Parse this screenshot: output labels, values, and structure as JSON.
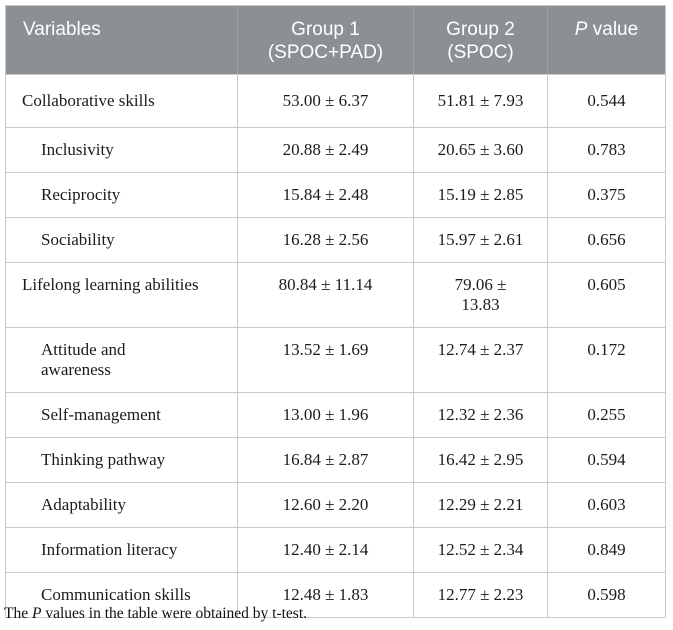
{
  "colors": {
    "header_bg": "#8a9094",
    "header_text": "#ffffff",
    "header_divider": "#9ea3a6",
    "cell_border": "#c9cacb",
    "body_text": "#1b1b1b",
    "page_bg": "#ffffff"
  },
  "table": {
    "header": {
      "variables": "Variables",
      "group1": "Group 1\n(SPOC+PAD)",
      "group2": "Group 2\n(SPOC)",
      "p_label_italic": "P",
      "p_label_rest": " value"
    },
    "rows": [
      {
        "label": "Collaborative skills",
        "group1": "53.00 ± 6.37",
        "group2": "51.81 ± 7.93",
        "p": "0.544"
      },
      {
        "label": "Inclusivity",
        "group1": "20.88 ± 2.49",
        "group2": "20.65 ± 3.60",
        "p": "0.783"
      },
      {
        "label": "Reciprocity",
        "group1": "15.84 ± 2.48",
        "group2": "15.19 ± 2.85",
        "p": "0.375"
      },
      {
        "label": "Sociability",
        "group1": "16.28 ± 2.56",
        "group2": "15.97 ± 2.61",
        "p": "0.656"
      },
      {
        "label": "Lifelong learning abilities",
        "group1": "80.84 ± 11.14",
        "group2": "79.06 ±\n13.83",
        "p": "0.605"
      },
      {
        "label": "Attitude and\nawareness",
        "group1": "13.52 ± 1.69",
        "group2": "12.74 ± 2.37",
        "p": "0.172"
      },
      {
        "label": "Self-management",
        "group1": "13.00 ± 1.96",
        "group2": "12.32 ± 2.36",
        "p": "0.255"
      },
      {
        "label": "Thinking pathway",
        "group1": "16.84 ± 2.87",
        "group2": "16.42 ± 2.95",
        "p": "0.594"
      },
      {
        "label": "Adaptability",
        "group1": "12.60 ± 2.20",
        "group2": "12.29 ± 2.21",
        "p": "0.603"
      },
      {
        "label": "Information literacy",
        "group1": "12.40 ± 2.14",
        "group2": "12.52 ± 2.34",
        "p": "0.849"
      },
      {
        "label": "Communication skills",
        "group1": "12.48 ± 1.83",
        "group2": "12.77 ± 2.23",
        "p": "0.598"
      }
    ]
  },
  "footnote": {
    "prefix": "The ",
    "italic": "P",
    "suffix": " values in the table were obtained by t-test."
  }
}
